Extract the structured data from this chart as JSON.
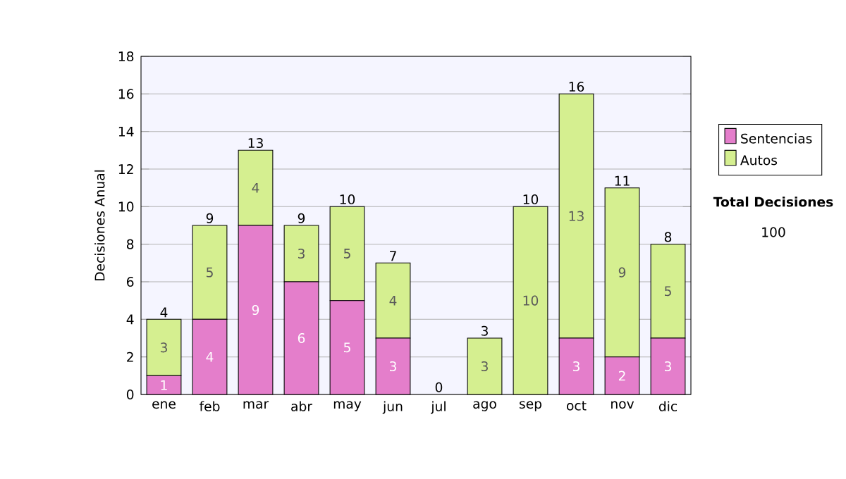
{
  "chart_data": {
    "type": "bar",
    "stacked": true,
    "ylabel": "Decisiones Anual",
    "categories": [
      "ene",
      "feb",
      "mar",
      "abr",
      "may",
      "jun",
      "jul",
      "ago",
      "sep",
      "oct",
      "nov",
      "dic"
    ],
    "series": [
      {
        "name": "Sentencias",
        "color": "#e47ecb",
        "values": [
          1,
          4,
          9,
          6,
          5,
          3,
          0,
          0,
          0,
          3,
          2,
          3
        ],
        "value_labels": [
          "1",
          "4",
          "9",
          "6",
          "5",
          "3",
          null,
          null,
          null,
          "3",
          "2",
          "3"
        ]
      },
      {
        "name": "Autos",
        "color": "#d5ef90",
        "values": [
          3,
          5,
          4,
          3,
          5,
          4,
          0,
          3,
          10,
          13,
          9,
          5
        ],
        "value_labels": [
          "3",
          "5",
          "4",
          "3",
          "5",
          "4",
          null,
          "3",
          "10",
          "13",
          "9",
          "5"
        ]
      }
    ],
    "totals": [
      "4",
      "9",
      "13",
      "9",
      "10",
      "7",
      "0",
      "3",
      "10",
      "16",
      "11",
      "8"
    ],
    "ylim": [
      0,
      18
    ],
    "yticks": [
      0,
      2,
      4,
      6,
      8,
      10,
      12,
      14,
      16,
      18
    ],
    "grid": "y",
    "legend": "right",
    "annotations": [
      "Total Decisiones",
      "100"
    ]
  }
}
